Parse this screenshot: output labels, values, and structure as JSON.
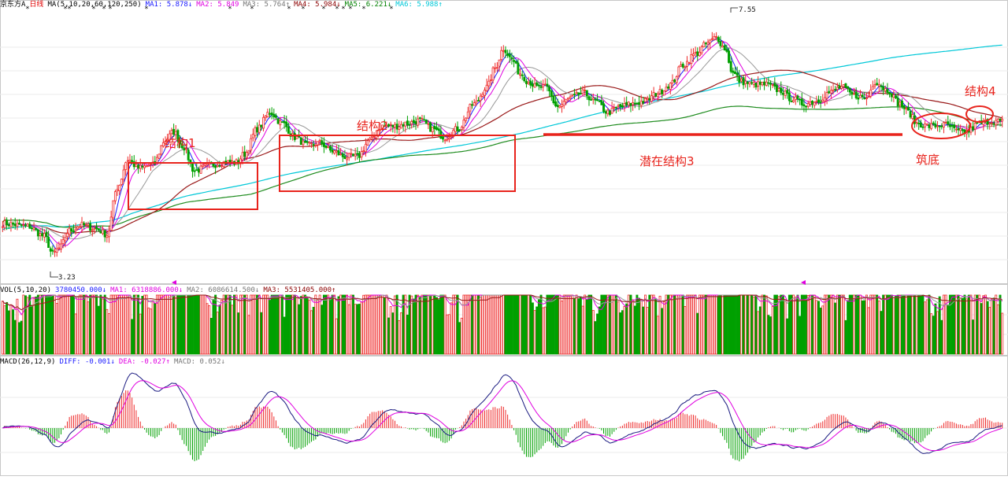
{
  "header_price": {
    "name": "京东方A",
    "period": "日线",
    "ma_label": "MA(5,10,20,60,120,250)",
    "items": [
      {
        "text": "MA1: 5.878↓",
        "color": "#1a1aff"
      },
      {
        "text": "MA2: 5.849",
        "color": "#e000e0"
      },
      {
        "text": "MA3: 5.764↑",
        "color": "#777777"
      },
      {
        "text": "MA4: 5.984↓",
        "color": "#8b0000"
      },
      {
        "text": "MA5: 6.221↓",
        "color": "#008000"
      },
      {
        "text": "MA6: 5.988↑",
        "color": "#00c8d8"
      }
    ]
  },
  "header_vol": {
    "label": "VOL(5,10,20)",
    "items": [
      {
        "text": "3780450.000↓",
        "color": "#1a1aff"
      },
      {
        "text": "MA1: 6318886.000↓",
        "color": "#e000e0"
      },
      {
        "text": "MA2: 6086614.500↓",
        "color": "#777777"
      },
      {
        "text": "MA3: 5531405.000↑",
        "color": "#8b0000"
      }
    ]
  },
  "header_macd": {
    "label": "MACD(26,12,9)",
    "items": [
      {
        "text": "DIFF: -0.001↓",
        "color": "#1a1aff"
      },
      {
        "text": "DEA: -0.027↑",
        "color": "#e000e0"
      },
      {
        "text": "MACD: 0.052↓",
        "color": "#777777"
      }
    ]
  },
  "annotations": {
    "s1": "结构1",
    "s2": "结构2",
    "s3": "潜在结构3",
    "s4": "结构4",
    "bottom": "筑底"
  },
  "price_labels": {
    "high": "7.55",
    "low": "3.23"
  },
  "colors": {
    "up": "#ee2a2a",
    "down": "#00a000",
    "ma5": "#1a1aff",
    "ma10": "#e000e0",
    "ma20": "#999999",
    "ma60": "#9a1a1a",
    "ma120": "#1f8c1f",
    "ma250": "#00c8d8",
    "annotation": "#e8231c"
  },
  "chart_data": {
    "type": "candlestick",
    "price_keypoints": [
      [
        0,
        4.05
      ],
      [
        12,
        4.0
      ],
      [
        20,
        3.82
      ],
      [
        24,
        3.5
      ],
      [
        27,
        3.6
      ],
      [
        32,
        3.92
      ],
      [
        38,
        4.02
      ],
      [
        45,
        3.95
      ],
      [
        50,
        3.85
      ],
      [
        55,
        4.7
      ],
      [
        60,
        5.2
      ],
      [
        65,
        5.05
      ],
      [
        72,
        5.1
      ],
      [
        78,
        5.55
      ],
      [
        82,
        5.7
      ],
      [
        86,
        5.45
      ],
      [
        92,
        5.0
      ],
      [
        100,
        5.1
      ],
      [
        106,
        5.15
      ],
      [
        112,
        5.15
      ],
      [
        116,
        5.3
      ],
      [
        122,
        5.75
      ],
      [
        128,
        6.05
      ],
      [
        134,
        5.85
      ],
      [
        140,
        5.6
      ],
      [
        146,
        5.45
      ],
      [
        152,
        5.5
      ],
      [
        158,
        5.35
      ],
      [
        164,
        5.25
      ],
      [
        170,
        5.25
      ],
      [
        176,
        5.55
      ],
      [
        182,
        5.8
      ],
      [
        188,
        5.8
      ],
      [
        194,
        5.85
      ],
      [
        200,
        5.9
      ],
      [
        206,
        5.75
      ],
      [
        212,
        5.6
      ],
      [
        218,
        5.75
      ],
      [
        226,
        6.2
      ],
      [
        232,
        6.5
      ],
      [
        236,
        6.85
      ],
      [
        240,
        7.2
      ],
      [
        244,
        7.0
      ],
      [
        248,
        6.75
      ],
      [
        252,
        6.6
      ],
      [
        256,
        6.5
      ],
      [
        260,
        6.5
      ],
      [
        266,
        6.15
      ],
      [
        272,
        6.3
      ],
      [
        278,
        6.4
      ],
      [
        284,
        6.25
      ],
      [
        290,
        6.05
      ],
      [
        296,
        6.15
      ],
      [
        302,
        6.2
      ],
      [
        308,
        6.25
      ],
      [
        314,
        6.4
      ],
      [
        320,
        6.55
      ],
      [
        326,
        6.9
      ],
      [
        332,
        7.1
      ],
      [
        338,
        7.3
      ],
      [
        342,
        7.4
      ],
      [
        346,
        7.2
      ],
      [
        350,
        6.75
      ],
      [
        354,
        6.6
      ],
      [
        360,
        6.55
      ],
      [
        366,
        6.55
      ],
      [
        372,
        6.45
      ],
      [
        378,
        6.3
      ],
      [
        384,
        6.2
      ],
      [
        390,
        6.25
      ],
      [
        396,
        6.4
      ],
      [
        402,
        6.5
      ],
      [
        408,
        6.35
      ],
      [
        414,
        6.3
      ],
      [
        418,
        6.6
      ],
      [
        424,
        6.45
      ],
      [
        430,
        6.2
      ],
      [
        434,
        6.05
      ],
      [
        438,
        5.85
      ],
      [
        444,
        5.8
      ],
      [
        452,
        5.82
      ],
      [
        458,
        5.7
      ],
      [
        462,
        5.7
      ],
      [
        468,
        5.85
      ],
      [
        474,
        5.9
      ],
      [
        480,
        5.88
      ]
    ],
    "ylim": [
      3.0,
      7.9
    ],
    "high_label": 7.55,
    "low_label": 3.23,
    "n_candles": 480
  }
}
